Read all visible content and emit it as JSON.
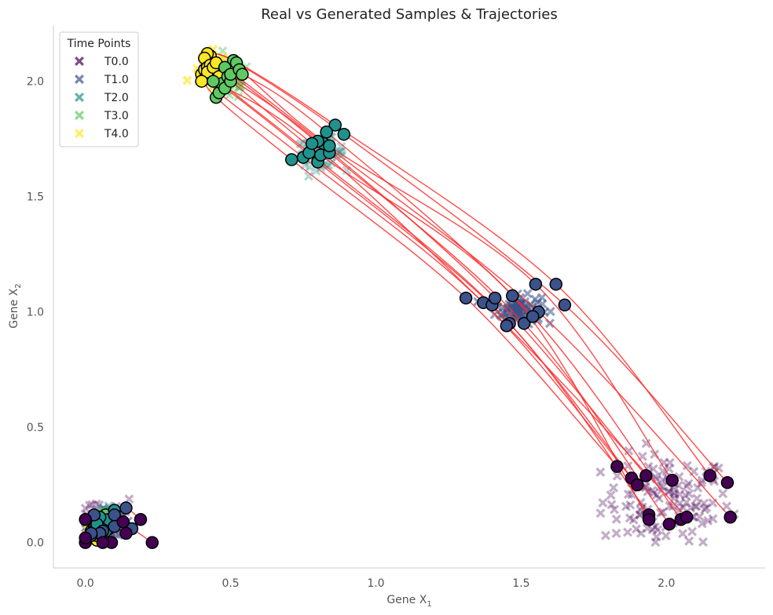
{
  "chart_data": {
    "type": "scatter",
    "title": "Real vs Generated Samples & Trajectories",
    "xlabel_base": "Gene X",
    "xlabel_sub": "1",
    "ylabel_base": "Gene X",
    "ylabel_sub": "2",
    "xlim": [
      -0.11,
      2.34
    ],
    "ylim": [
      -0.11,
      2.24
    ],
    "xticks": [
      0.0,
      0.5,
      1.0,
      1.5,
      2.0
    ],
    "xtick_labels": [
      "0.0",
      "0.5",
      "1.0",
      "1.5",
      "2.0"
    ],
    "yticks": [
      0.0,
      0.5,
      1.0,
      1.5,
      2.0
    ],
    "ytick_labels": [
      "0.0",
      "0.5",
      "1.0",
      "1.5",
      "2.0"
    ],
    "grid": false,
    "legend": {
      "title": "Time Points",
      "placement": "top-left",
      "entries": [
        {
          "label": "T0.0",
          "color": "#440154"
        },
        {
          "label": "T1.0",
          "color": "#3b528b"
        },
        {
          "label": "T2.0",
          "color": "#21918c"
        },
        {
          "label": "T3.0",
          "color": "#5ec962"
        },
        {
          "label": "T4.0",
          "color": "#fde725"
        }
      ]
    },
    "trajectory_color": "#ff2a2a",
    "real_clusters": [
      {
        "time": "T0.0",
        "cx": 2.0,
        "cy": 0.18,
        "sx": 0.11,
        "sy": 0.1,
        "n": 120,
        "alpha": 0.32
      },
      {
        "time": "T0.0",
        "cx": 0.06,
        "cy": 0.1,
        "sx": 0.06,
        "sy": 0.06,
        "n": 40,
        "alpha": 0.32
      },
      {
        "time": "T1.0",
        "cx": 1.49,
        "cy": 1.01,
        "sx": 0.04,
        "sy": 0.03,
        "n": 80,
        "alpha": 0.55
      },
      {
        "time": "T1.0",
        "cx": 0.08,
        "cy": 0.08,
        "sx": 0.04,
        "sy": 0.04,
        "n": 20,
        "alpha": 0.55
      },
      {
        "time": "T2.0",
        "cx": 0.81,
        "cy": 1.69,
        "sx": 0.04,
        "sy": 0.03,
        "n": 60,
        "alpha": 0.35
      },
      {
        "time": "T2.0",
        "cx": 0.07,
        "cy": 0.08,
        "sx": 0.04,
        "sy": 0.04,
        "n": 20,
        "alpha": 0.45
      },
      {
        "time": "T3.0",
        "cx": 0.49,
        "cy": 2.0,
        "sx": 0.04,
        "sy": 0.04,
        "n": 50,
        "alpha": 0.45
      },
      {
        "time": "T3.0",
        "cx": 0.07,
        "cy": 0.08,
        "sx": 0.03,
        "sy": 0.03,
        "n": 20,
        "alpha": 0.5
      },
      {
        "time": "T4.0",
        "cx": 0.43,
        "cy": 2.04,
        "sx": 0.03,
        "sy": 0.04,
        "n": 30,
        "alpha": 0.7
      },
      {
        "time": "T4.0",
        "cx": 0.04,
        "cy": 0.06,
        "sx": 0.03,
        "sy": 0.03,
        "n": 20,
        "alpha": 0.7
      }
    ],
    "trajectories": [
      [
        [
          2.15,
          0.29
        ],
        [
          1.62,
          1.12
        ],
        [
          0.86,
          1.81
        ],
        [
          0.51,
          2.09
        ],
        [
          0.43,
          2.11
        ]
      ],
      [
        [
          2.21,
          0.26
        ],
        [
          1.65,
          1.03
        ],
        [
          0.89,
          1.77
        ],
        [
          0.52,
          2.08
        ],
        [
          0.42,
          2.12
        ]
      ],
      [
        [
          2.22,
          0.11
        ],
        [
          1.56,
          1.0
        ],
        [
          0.82,
          1.73
        ],
        [
          0.48,
          2.06
        ],
        [
          0.41,
          2.1
        ]
      ],
      [
        [
          1.83,
          0.33
        ],
        [
          1.31,
          1.06
        ],
        [
          0.71,
          1.66
        ],
        [
          0.45,
          1.93
        ],
        [
          0.4,
          2.03
        ]
      ],
      [
        [
          1.88,
          0.28
        ],
        [
          1.37,
          1.04
        ],
        [
          0.75,
          1.67
        ],
        [
          0.46,
          1.95
        ],
        [
          0.41,
          2.05
        ]
      ],
      [
        [
          1.9,
          0.25
        ],
        [
          1.4,
          1.03
        ],
        [
          0.77,
          1.69
        ],
        [
          0.47,
          1.99
        ],
        [
          0.42,
          2.06
        ]
      ],
      [
        [
          1.93,
          0.29
        ],
        [
          1.41,
          1.06
        ],
        [
          0.8,
          1.74
        ],
        [
          0.49,
          2.02
        ],
        [
          0.43,
          2.07
        ]
      ],
      [
        [
          1.94,
          0.12
        ],
        [
          1.46,
          0.95
        ],
        [
          0.8,
          1.65
        ],
        [
          0.48,
          1.97
        ],
        [
          0.41,
          2.01
        ]
      ],
      [
        [
          1.94,
          0.1
        ],
        [
          1.47,
          1.07
        ],
        [
          0.81,
          1.68
        ],
        [
          0.5,
          2.0
        ],
        [
          0.42,
          2.04
        ]
      ],
      [
        [
          2.01,
          0.08
        ],
        [
          1.51,
          0.95
        ],
        [
          0.84,
          1.69
        ],
        [
          0.5,
          2.03
        ],
        [
          0.44,
          2.06
        ]
      ],
      [
        [
          2.02,
          0.27
        ],
        [
          1.55,
          1.12
        ],
        [
          0.84,
          1.72
        ],
        [
          0.53,
          2.05
        ],
        [
          0.45,
          2.08
        ]
      ],
      [
        [
          2.05,
          0.1
        ],
        [
          1.54,
          0.98
        ],
        [
          0.83,
          1.78
        ],
        [
          0.54,
          2.03
        ],
        [
          0.46,
          2.02
        ]
      ],
      [
        [
          2.07,
          0.11
        ],
        [
          1.45,
          0.94
        ],
        [
          0.78,
          1.73
        ],
        [
          0.44,
          2.0
        ],
        [
          0.4,
          2.0
        ]
      ],
      [
        [
          0.23,
          0.0
        ],
        [
          0.16,
          0.06
        ],
        [
          0.11,
          0.09
        ],
        [
          0.08,
          0.06
        ],
        [
          0.05,
          0.04
        ]
      ],
      [
        [
          0.19,
          0.1
        ],
        [
          0.14,
          0.15
        ],
        [
          0.1,
          0.14
        ],
        [
          0.07,
          0.12
        ],
        [
          0.04,
          0.05
        ]
      ],
      [
        [
          0.13,
          0.09
        ],
        [
          0.1,
          0.12
        ],
        [
          0.08,
          0.1
        ],
        [
          0.05,
          0.07
        ],
        [
          0.03,
          0.03
        ]
      ],
      [
        [
          0.14,
          0.04
        ],
        [
          0.1,
          0.07
        ],
        [
          0.07,
          0.05
        ],
        [
          0.04,
          0.03
        ],
        [
          0.02,
          0.02
        ]
      ],
      [
        [
          0.09,
          0.0
        ],
        [
          0.06,
          0.05
        ],
        [
          0.04,
          0.08
        ],
        [
          0.03,
          0.06
        ],
        [
          0.05,
          0.02
        ]
      ],
      [
        [
          0.06,
          0.0
        ],
        [
          0.05,
          0.04
        ],
        [
          0.03,
          0.06
        ],
        [
          0.02,
          0.05
        ],
        [
          0.04,
          0.01
        ]
      ],
      [
        [
          0.0,
          0.0
        ],
        [
          0.02,
          0.03
        ],
        [
          0.03,
          0.05
        ],
        [
          0.05,
          0.06
        ],
        [
          0.06,
          0.02
        ]
      ],
      [
        [
          0.0,
          0.1
        ],
        [
          0.03,
          0.12
        ],
        [
          0.05,
          0.11
        ],
        [
          0.06,
          0.08
        ],
        [
          0.05,
          0.04
        ]
      ],
      [
        [
          0.0,
          0.02
        ],
        [
          0.02,
          0.04
        ],
        [
          0.04,
          0.08
        ],
        [
          0.06,
          0.1
        ],
        [
          0.07,
          0.05
        ]
      ]
    ]
  }
}
